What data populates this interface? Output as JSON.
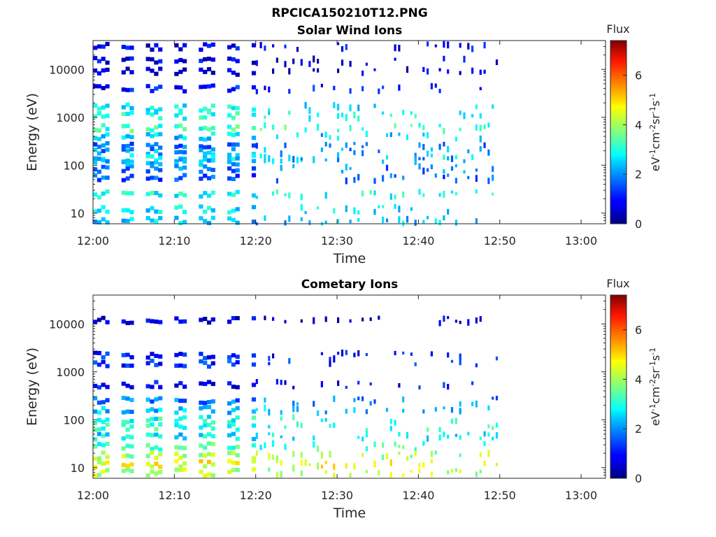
{
  "figure_title": "RPCICA150210T12.PNG",
  "chart_data": [
    {
      "type": "heatmap",
      "title": "Solar Wind Ions",
      "xlabel": "Time",
      "ylabel": "Energy (eV)",
      "x_ticks": [
        "12:00",
        "12:10",
        "12:20",
        "12:30",
        "12:40",
        "12:50",
        "13:00"
      ],
      "x_range": [
        "12:00",
        "13:03"
      ],
      "y_scale": "log",
      "y_ticks": [
        10,
        100,
        1000,
        10000
      ],
      "y_range": [
        6,
        40000
      ],
      "data_time_range": [
        "12:00",
        "12:50"
      ],
      "colorbar": {
        "label": "Flux",
        "unit": "eV^-1cm^-2sr^-1s^-1",
        "range": [
          0,
          7.4
        ],
        "ticks": [
          0,
          2,
          4,
          6
        ],
        "colormap": "jet"
      },
      "bands": [
        {
          "energy_eV": 30000,
          "level": 0.8
        },
        {
          "energy_eV": 15000,
          "level": 0.7
        },
        {
          "energy_eV": 9000,
          "level": 0.6
        },
        {
          "energy_eV": 4000,
          "level": 1.0
        },
        {
          "energy_eV": 1600,
          "level": 2.7
        },
        {
          "energy_eV": 1100,
          "level": 2.9
        },
        {
          "energy_eV": 600,
          "level": 3.2
        },
        {
          "energy_eV": 400,
          "level": 2.4
        },
        {
          "energy_eV": 250,
          "level": 1.6
        },
        {
          "energy_eV": 190,
          "level": 2.0
        },
        {
          "energy_eV": 140,
          "level": 2.6
        },
        {
          "energy_eV": 120,
          "level": 2.1
        },
        {
          "energy_eV": 85,
          "level": 1.8
        },
        {
          "energy_eV": 55,
          "level": 1.5
        },
        {
          "energy_eV": 25,
          "level": 2.9
        },
        {
          "energy_eV": 12,
          "level": 2.6
        },
        {
          "energy_eV": 7,
          "level": 2.3
        }
      ]
    },
    {
      "type": "heatmap",
      "title": "Cometary Ions",
      "xlabel": "Time",
      "ylabel": "Energy (eV)",
      "x_ticks": [
        "12:00",
        "12:10",
        "12:20",
        "12:30",
        "12:40",
        "12:50",
        "13:00"
      ],
      "x_range": [
        "12:00",
        "13:03"
      ],
      "y_scale": "log",
      "y_ticks": [
        10,
        100,
        1000,
        10000
      ],
      "y_range": [
        6,
        40000
      ],
      "data_time_range": [
        "12:00",
        "12:50"
      ],
      "colorbar": {
        "label": "Flux",
        "unit": "eV^-1cm^-2sr^-1s^-1",
        "range": [
          0,
          7.4
        ],
        "ticks": [
          0,
          2,
          4,
          6
        ],
        "colormap": "jet"
      },
      "bands": [
        {
          "energy_eV": 12000,
          "level": 0.6
        },
        {
          "energy_eV": 2200,
          "level": 1.0
        },
        {
          "energy_eV": 1500,
          "level": 1.2
        },
        {
          "energy_eV": 550,
          "level": 0.9
        },
        {
          "energy_eV": 250,
          "level": 1.8
        },
        {
          "energy_eV": 160,
          "level": 2.3
        },
        {
          "energy_eV": 100,
          "level": 2.9
        },
        {
          "energy_eV": 70,
          "level": 3.1
        },
        {
          "energy_eV": 45,
          "level": 2.6
        },
        {
          "energy_eV": 28,
          "level": 3.2
        },
        {
          "energy_eV": 18,
          "level": 3.9
        },
        {
          "energy_eV": 12,
          "level": 4.5
        },
        {
          "energy_eV": 8,
          "level": 4.1
        }
      ]
    }
  ]
}
